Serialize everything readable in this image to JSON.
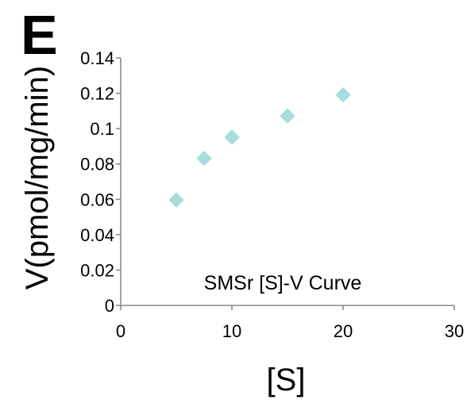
{
  "panel_label": "E",
  "chart_data": {
    "type": "scatter",
    "title": "SMSr [S]-V Curve",
    "xlabel": "[S]",
    "ylabel": "V(pmol/mg/min)",
    "xlim": [
      0,
      30
    ],
    "ylim": [
      0,
      0.14
    ],
    "x_ticks": [
      0,
      10,
      20,
      30
    ],
    "x_tick_labels": [
      "0",
      "10",
      "20",
      "30"
    ],
    "y_ticks": [
      0,
      0.02,
      0.04,
      0.06,
      0.08,
      0.1,
      0.12,
      0.14
    ],
    "y_tick_labels": [
      "0",
      "0.02",
      "0.04",
      "0.06",
      "0.08",
      "0.1",
      "0.12",
      "0.14"
    ],
    "grid": false,
    "legend": "none",
    "series": [
      {
        "marker": "diamond",
        "color": "#a9dcdc",
        "x": [
          5,
          7.5,
          10,
          15,
          20
        ],
        "y": [
          0.0597,
          0.0832,
          0.0952,
          0.1072,
          0.1191
        ]
      }
    ]
  }
}
